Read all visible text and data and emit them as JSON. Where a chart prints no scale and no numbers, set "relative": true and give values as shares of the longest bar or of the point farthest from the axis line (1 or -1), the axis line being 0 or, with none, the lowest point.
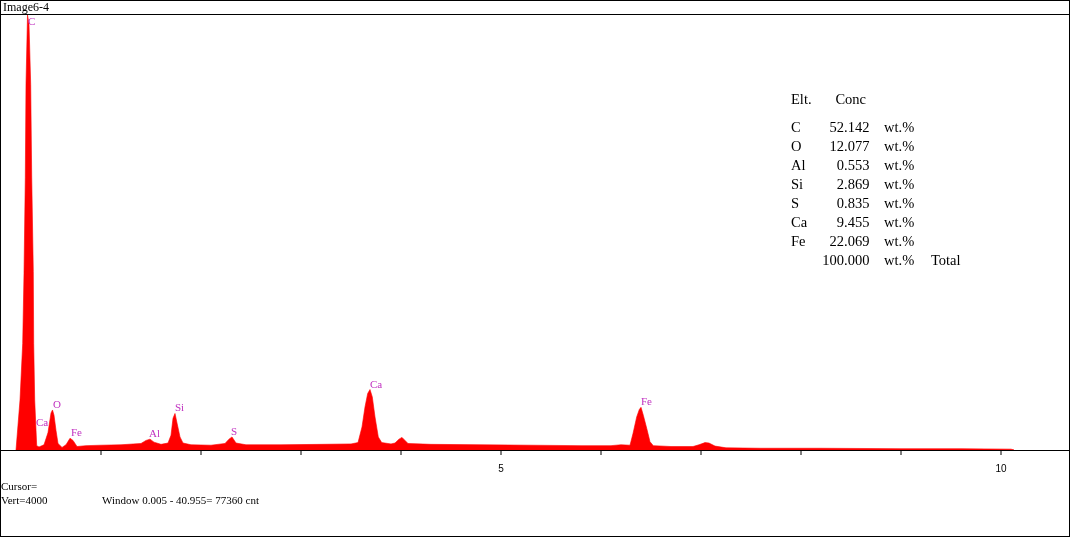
{
  "chart_data": [
    {
      "type": "area",
      "title": "Image6-4",
      "relative": true,
      "xlim": [
        0,
        10.68
      ],
      "xticks": [
        {
          "value": 1,
          "label": null
        },
        {
          "value": 2,
          "label": null
        },
        {
          "value": 3,
          "label": null
        },
        {
          "value": 4,
          "label": null
        },
        5,
        {
          "value": 6,
          "label": null
        },
        {
          "value": 7,
          "label": null
        },
        {
          "value": 8,
          "label": null
        },
        {
          "value": 9,
          "label": null
        },
        10
      ],
      "x": [
        0.15,
        0.19,
        0.217,
        0.23,
        0.243,
        0.25,
        0.265,
        0.28,
        0.297,
        0.307,
        0.323,
        0.327,
        0.337,
        0.357,
        0.38,
        0.43,
        0.47,
        0.5,
        0.515,
        0.53,
        0.55,
        0.57,
        0.61,
        0.65,
        0.69,
        0.72,
        0.76,
        0.85,
        1.0,
        1.2,
        1.4,
        1.45,
        1.49,
        1.53,
        1.6,
        1.67,
        1.7,
        1.72,
        1.74,
        1.76,
        1.79,
        1.82,
        1.9,
        2.1,
        2.24,
        2.28,
        2.31,
        2.35,
        2.45,
        2.8,
        3.2,
        3.5,
        3.57,
        3.61,
        3.64,
        3.667,
        3.69,
        3.713,
        3.74,
        3.773,
        3.807,
        3.9,
        3.94,
        3.98,
        4.01,
        4.04,
        4.07,
        4.3,
        4.8,
        5.3,
        5.8,
        6.1,
        6.2,
        6.29,
        6.32,
        6.357,
        6.383,
        6.4,
        6.423,
        6.457,
        6.49,
        6.523,
        6.7,
        6.92,
        6.98,
        7.04,
        7.08,
        7.14,
        7.25,
        7.6,
        8.2,
        9.0,
        9.6,
        10.1,
        10.13
      ],
      "series": [
        {
          "color": "#ff0000",
          "values": [
            0,
            0.115,
            0.245,
            0.406,
            0.626,
            0.842,
            1.0,
            0.98,
            0.84,
            0.63,
            0.41,
            0.245,
            0.115,
            0.01,
            0.007,
            0.012,
            0.04,
            0.085,
            0.092,
            0.08,
            0.045,
            0.015,
            0.006,
            0.012,
            0.027,
            0.022,
            0.008,
            0.01,
            0.011,
            0.012,
            0.015,
            0.022,
            0.025,
            0.018,
            0.013,
            0.016,
            0.034,
            0.073,
            0.084,
            0.062,
            0.03,
            0.016,
            0.012,
            0.011,
            0.015,
            0.025,
            0.03,
            0.016,
            0.012,
            0.012,
            0.013,
            0.014,
            0.017,
            0.053,
            0.099,
            0.13,
            0.139,
            0.122,
            0.076,
            0.03,
            0.017,
            0.014,
            0.016,
            0.025,
            0.029,
            0.022,
            0.015,
            0.013,
            0.012,
            0.011,
            0.01,
            0.01,
            0.012,
            0.011,
            0.038,
            0.076,
            0.093,
            0.098,
            0.08,
            0.05,
            0.019,
            0.01,
            0.008,
            0.008,
            0.012,
            0.017,
            0.016,
            0.009,
            0.005,
            0.004,
            0.004,
            0.003,
            0.003,
            0.002,
            0
          ]
        }
      ],
      "annotations": [
        {
          "text": "C",
          "x": 0.27,
          "y": 1.0
        },
        {
          "text": "Ca",
          "x": 0.35,
          "y": 0.05
        },
        {
          "text": "O",
          "x": 0.52,
          "y": 0.092
        },
        {
          "text": "Fe",
          "x": 0.7,
          "y": 0.027
        },
        {
          "text": "Al",
          "x": 1.48,
          "y": 0.025
        },
        {
          "text": "Si",
          "x": 1.74,
          "y": 0.084
        },
        {
          "text": "S",
          "x": 2.3,
          "y": 0.03
        },
        {
          "text": "Ca",
          "x": 3.69,
          "y": 0.139
        },
        {
          "text": "Fe",
          "x": 6.4,
          "y": 0.098
        },
        "Cursor=",
        "Vert=4000",
        "Window 0.005 - 40.955= 77360 cnt"
      ]
    },
    {
      "type": "other",
      "annotations": [
        "Elt.\tConc",
        "C\t52.142\twt.%",
        "O\t12.077\twt.%",
        "Al\t0.553\twt.%",
        "Si\t2.869\twt.%",
        "S\t0.835\twt.%",
        "Ca\t9.455\twt.%",
        "Fe\t22.069\twt.%",
        "\t100.000\twt.%\tTotal"
      ]
    }
  ]
}
